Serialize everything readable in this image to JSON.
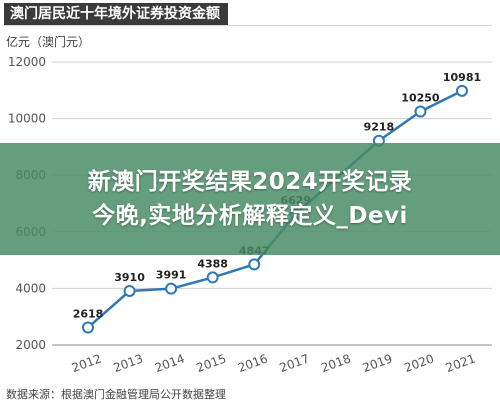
{
  "header": {
    "title": "澳门居民近十年境外证券投资金额"
  },
  "unit_label": "亿元（澳门元）",
  "source_note": "数据来源：根据澳门金融管理局公开数据整理",
  "overlay": {
    "line1": "新澳门开奖结果2024开奖记录",
    "line2": "今晚,实地分析解释定义_Devi"
  },
  "colors": {
    "line": "#2e78b8",
    "accent_bg": "#488c64",
    "title_bg": "#3a3a3a"
  },
  "chart_data": {
    "type": "line",
    "x": [
      "2012",
      "2013",
      "2014",
      "2015",
      "2016",
      "2017",
      "2018",
      "2019",
      "2020",
      "2021"
    ],
    "values": [
      2618,
      3910,
      3991,
      4388,
      4847,
      6629,
      null,
      9218,
      10250,
      10981
    ],
    "point_labels": [
      "2618",
      "3910",
      "3991",
      "4388",
      "4847",
      "6629",
      "",
      "9218",
      "10250",
      "10981"
    ],
    "ylim": [
      2000,
      12000
    ],
    "yticks": [
      "2000",
      "4000",
      "6000",
      "8000",
      "10000",
      "12000"
    ],
    "grid": true
  }
}
